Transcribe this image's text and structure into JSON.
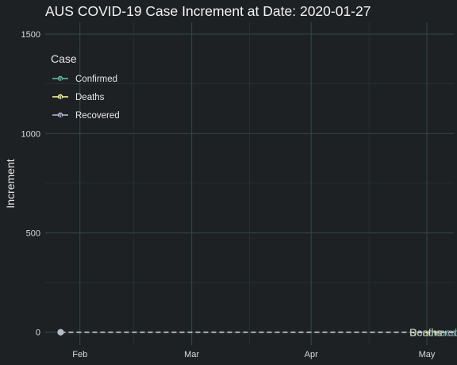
{
  "chart_data": {
    "type": "line",
    "title": "AUS COVID-19 Case Increment at Date: 2020-01-27",
    "xlabel": "",
    "ylabel": "Increment",
    "x_ticks": [
      "Feb",
      "Mar",
      "Apr",
      "May"
    ],
    "y_ticks": [
      "0",
      "500",
      "1000",
      "1500"
    ],
    "ylim": [
      0,
      1500
    ],
    "xlim": [
      "2020-01-23",
      "2020-05-08"
    ],
    "grid": true,
    "legend_title": "Case",
    "legend_position": "top-left",
    "current_date": "2020-01-27",
    "series": [
      {
        "name": "Confirmed",
        "color": "#66c2a5",
        "x": [
          "2020-01-27"
        ],
        "y": [
          0
        ],
        "end_label": "Confirmed"
      },
      {
        "name": "Deaths",
        "color": "#ffff99",
        "x": [
          "2020-01-27"
        ],
        "y": [
          0
        ],
        "end_label": "Deaths"
      },
      {
        "name": "Recovered",
        "color": "#bebada",
        "x": [
          "2020-01-27"
        ],
        "y": [
          0
        ],
        "end_label": "Recovered"
      }
    ]
  }
}
